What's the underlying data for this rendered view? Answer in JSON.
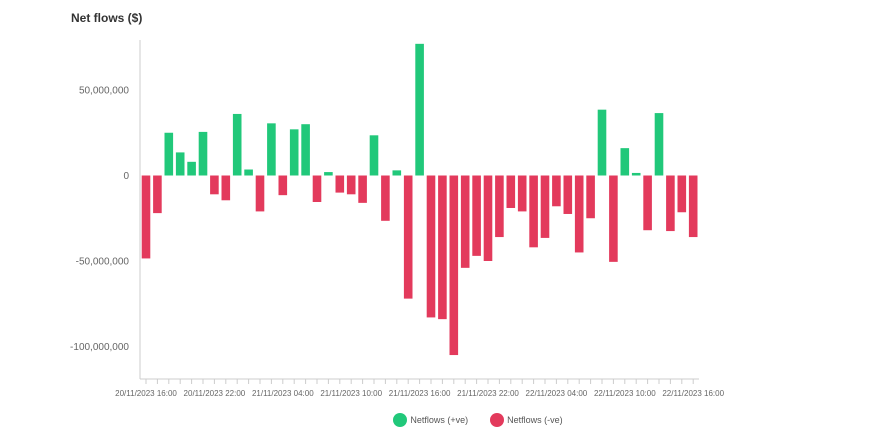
{
  "title": "Net flows ($)",
  "legend": {
    "positive_label": "Netflows (+ve)",
    "negative_label": "Netflows (-ve)"
  },
  "colors": {
    "positive": "#21c87a",
    "negative": "#e33a5c",
    "axis": "#cccccc",
    "tick_text": "#666666"
  },
  "chart_data": {
    "type": "bar",
    "title": "Net flows ($)",
    "ylim": [
      -120000000,
      80000000
    ],
    "y_ticks": [
      {
        "value": 50000000,
        "label": "50,000,000"
      },
      {
        "value": 0,
        "label": "0"
      },
      {
        "value": -50000000,
        "label": "-50,000,000"
      },
      {
        "value": -100000000,
        "label": "-100,000,000"
      }
    ],
    "x_tick_labels": [
      {
        "index": 0,
        "label": "20/11/2023 16:00"
      },
      {
        "index": 6,
        "label": "20/11/2023 22:00"
      },
      {
        "index": 12,
        "label": "21/11/2023 04:00"
      },
      {
        "index": 18,
        "label": "21/11/2023 10:00"
      },
      {
        "index": 24,
        "label": "21/11/2023 16:00"
      },
      {
        "index": 30,
        "label": "21/11/2023 22:00"
      },
      {
        "index": 36,
        "label": "22/11/2023 04:00"
      },
      {
        "index": 42,
        "label": "22/11/2023 10:00"
      },
      {
        "index": 48,
        "label": "22/11/2023 16:00"
      }
    ],
    "series": [
      {
        "name": "Netflows (+ve)",
        "sign": "positive"
      },
      {
        "name": "Netflows (-ve)",
        "sign": "negative"
      }
    ],
    "values": [
      -48500000,
      -22000000,
      25000000,
      13500000,
      8000000,
      25500000,
      -11000000,
      -14500000,
      36000000,
      3500000,
      -21000000,
      30500000,
      -11500000,
      27000000,
      30000000,
      -15500000,
      2000000,
      -10000000,
      -11000000,
      -16000000,
      23500000,
      -26500000,
      3000000,
      -72000000,
      77000000,
      -83000000,
      -84000000,
      -105000000,
      -54000000,
      -47000000,
      -50000000,
      -36000000,
      -19000000,
      -21000000,
      -42000000,
      -36500000,
      -18000000,
      -22500000,
      -45000000,
      -25000000,
      38500000,
      -50500000,
      16000000,
      1500000,
      -32000000,
      36500000,
      -32500000,
      -21500000,
      -36000000
    ]
  }
}
